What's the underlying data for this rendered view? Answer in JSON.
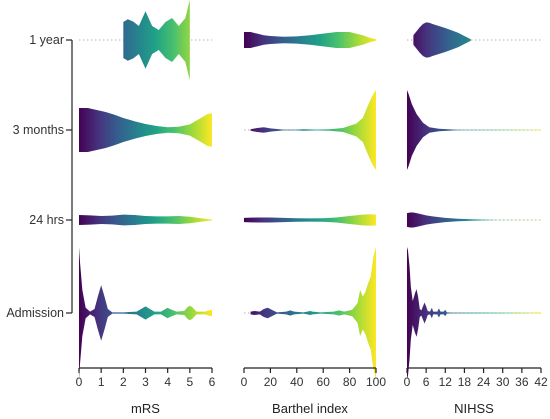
{
  "chart_data": {
    "type": "violin",
    "rows": [
      "1 year",
      "3 months",
      "24 hrs",
      "Admission"
    ],
    "colormap": [
      "#440154",
      "#46327e",
      "#365c8d",
      "#277f8e",
      "#1fa187",
      "#4ac16d",
      "#a0da39",
      "#fde725"
    ],
    "grid": "dotted horizontal baselines",
    "panels": [
      {
        "name": "mRS",
        "xlim": [
          0,
          6
        ],
        "ticks": [
          0,
          1,
          2,
          3,
          4,
          5,
          6
        ],
        "tick_labels": [
          "0",
          "1",
          "2",
          "3",
          "4",
          "5",
          "6"
        ],
        "violins": [
          {
            "row": "1 year",
            "range": [
              2,
              5
            ],
            "profile": [
              [
                2.0,
                0.45
              ],
              [
                2.2,
                0.52
              ],
              [
                2.45,
                0.46
              ],
              [
                2.7,
                0.35
              ],
              [
                3.0,
                0.72
              ],
              [
                3.3,
                0.35
              ],
              [
                3.6,
                0.25
              ],
              [
                3.9,
                0.45
              ],
              [
                4.2,
                0.55
              ],
              [
                4.5,
                0.35
              ],
              [
                4.8,
                0.55
              ],
              [
                4.95,
                0.9
              ],
              [
                5.0,
                1.0
              ]
            ]
          },
          {
            "row": "3 months",
            "range": [
              0,
              6
            ],
            "profile": [
              [
                0.0,
                0.55
              ],
              [
                0.4,
                0.55
              ],
              [
                0.8,
                0.5
              ],
              [
                1.2,
                0.45
              ],
              [
                1.6,
                0.38
              ],
              [
                2.0,
                0.3
              ],
              [
                2.5,
                0.22
              ],
              [
                3.0,
                0.15
              ],
              [
                3.5,
                0.1
              ],
              [
                4.0,
                0.07
              ],
              [
                4.5,
                0.08
              ],
              [
                5.0,
                0.14
              ],
              [
                5.5,
                0.3
              ],
              [
                5.8,
                0.4
              ],
              [
                6.0,
                0.42
              ]
            ]
          },
          {
            "row": "24 hrs",
            "range": [
              0,
              6
            ],
            "profile": [
              [
                0.0,
                0.28
              ],
              [
                0.5,
                0.26
              ],
              [
                1.0,
                0.22
              ],
              [
                1.5,
                0.24
              ],
              [
                2.0,
                0.3
              ],
              [
                2.5,
                0.28
              ],
              [
                3.0,
                0.22
              ],
              [
                3.5,
                0.2
              ],
              [
                4.0,
                0.2
              ],
              [
                4.5,
                0.22
              ],
              [
                5.0,
                0.18
              ],
              [
                5.5,
                0.1
              ],
              [
                6.0,
                0.02
              ]
            ]
          },
          {
            "row": "Admission",
            "range": [
              0,
              6
            ],
            "profile": [
              [
                0.0,
                1.0
              ],
              [
                0.05,
                0.75
              ],
              [
                0.15,
                0.35
              ],
              [
                0.3,
                0.08
              ],
              [
                0.5,
                0.02
              ],
              [
                0.7,
                0.06
              ],
              [
                0.85,
                0.25
              ],
              [
                1.0,
                0.42
              ],
              [
                1.15,
                0.25
              ],
              [
                1.3,
                0.06
              ],
              [
                1.5,
                0.01
              ],
              [
                2.0,
                0.01
              ],
              [
                2.6,
                0.02
              ],
              [
                2.85,
                0.07
              ],
              [
                3.0,
                0.1
              ],
              [
                3.15,
                0.07
              ],
              [
                3.4,
                0.02
              ],
              [
                3.7,
                0.02
              ],
              [
                3.9,
                0.06
              ],
              [
                4.0,
                0.08
              ],
              [
                4.1,
                0.06
              ],
              [
                4.4,
                0.02
              ],
              [
                4.75,
                0.03
              ],
              [
                4.9,
                0.09
              ],
              [
                5.0,
                0.11
              ],
              [
                5.1,
                0.09
              ],
              [
                5.3,
                0.02
              ],
              [
                5.7,
                0.02
              ],
              [
                5.85,
                0.04
              ],
              [
                6.0,
                0.05
              ]
            ]
          }
        ]
      },
      {
        "name": "Barthel index",
        "xlim": [
          0,
          100
        ],
        "ticks": [
          0,
          20,
          40,
          60,
          80,
          100
        ],
        "tick_labels": [
          "0",
          "20",
          "40",
          "60",
          "80",
          "100"
        ],
        "violins": [
          {
            "row": "1 year",
            "range": [
              0,
              100
            ],
            "profile": [
              [
                0,
                0.2
              ],
              [
                5,
                0.2
              ],
              [
                10,
                0.16
              ],
              [
                15,
                0.12
              ],
              [
                20,
                0.1
              ],
              [
                30,
                0.08
              ],
              [
                40,
                0.09
              ],
              [
                50,
                0.12
              ],
              [
                60,
                0.16
              ],
              [
                70,
                0.2
              ],
              [
                80,
                0.2
              ],
              [
                90,
                0.12
              ],
              [
                95,
                0.06
              ],
              [
                100,
                0.02
              ]
            ]
          },
          {
            "row": "3 months",
            "range": [
              5,
              100
            ],
            "profile": [
              [
                5,
                0.02
              ],
              [
                10,
                0.05
              ],
              [
                15,
                0.07
              ],
              [
                20,
                0.04
              ],
              [
                30,
                0.01
              ],
              [
                40,
                0.01
              ],
              [
                45,
                0.02
              ],
              [
                55,
                0.01
              ],
              [
                65,
                0.02
              ],
              [
                75,
                0.05
              ],
              [
                85,
                0.16
              ],
              [
                90,
                0.3
              ],
              [
                95,
                0.7
              ],
              [
                98,
                0.9
              ],
              [
                100,
                1.0
              ]
            ]
          },
          {
            "row": "24 hrs",
            "range": [
              0,
              100
            ],
            "profile": [
              [
                0,
                0.12
              ],
              [
                10,
                0.14
              ],
              [
                20,
                0.14
              ],
              [
                30,
                0.12
              ],
              [
                40,
                0.1
              ],
              [
                50,
                0.09
              ],
              [
                60,
                0.1
              ],
              [
                70,
                0.14
              ],
              [
                80,
                0.22
              ],
              [
                90,
                0.3
              ],
              [
                95,
                0.32
              ],
              [
                100,
                0.3
              ]
            ]
          },
          {
            "row": "Admission",
            "range": [
              5,
              100
            ],
            "profile": [
              [
                5,
                0.02
              ],
              [
                8,
                0.03
              ],
              [
                12,
                0.02
              ],
              [
                15,
                0.06
              ],
              [
                18,
                0.08
              ],
              [
                21,
                0.05
              ],
              [
                25,
                0.01
              ],
              [
                32,
                0.02
              ],
              [
                35,
                0.04
              ],
              [
                38,
                0.02
              ],
              [
                45,
                0.01
              ],
              [
                48,
                0.02
              ],
              [
                50,
                0.03
              ],
              [
                52,
                0.02
              ],
              [
                58,
                0.01
              ],
              [
                68,
                0.02
              ],
              [
                72,
                0.04
              ],
              [
                76,
                0.02
              ],
              [
                82,
                0.05
              ],
              [
                86,
                0.15
              ],
              [
                88,
                0.35
              ],
              [
                90,
                0.25
              ],
              [
                92,
                0.32
              ],
              [
                94,
                0.45
              ],
              [
                96,
                0.55
              ],
              [
                98,
                0.85
              ],
              [
                100,
                1.0
              ]
            ]
          }
        ]
      },
      {
        "name": "NIHSS",
        "xlim": [
          0,
          42
        ],
        "ticks": [
          0,
          6,
          12,
          18,
          24,
          30,
          36,
          42
        ],
        "tick_labels": [
          "0",
          "6",
          "12",
          "18",
          "24",
          "30",
          "36",
          "42"
        ],
        "violins": [
          {
            "row": "1 year",
            "range": [
              2,
              20
            ],
            "profile": [
              [
                2,
                0.12
              ],
              [
                3,
                0.22
              ],
              [
                4,
                0.32
              ],
              [
                5,
                0.4
              ],
              [
                6,
                0.44
              ],
              [
                7,
                0.43
              ],
              [
                8,
                0.4
              ],
              [
                10,
                0.35
              ],
              [
                12,
                0.3
              ],
              [
                14,
                0.24
              ],
              [
                16,
                0.18
              ],
              [
                18,
                0.1
              ],
              [
                20,
                0.02
              ]
            ]
          },
          {
            "row": "3 months",
            "range": [
              0,
              42
            ],
            "profile": [
              [
                0,
                1.0
              ],
              [
                0.5,
                0.9
              ],
              [
                1.5,
                0.65
              ],
              [
                3,
                0.4
              ],
              [
                5,
                0.18
              ],
              [
                7,
                0.07
              ],
              [
                10,
                0.03
              ],
              [
                13,
                0.02
              ],
              [
                15,
                0.01
              ],
              [
                18,
                0.005
              ],
              [
                40,
                0.005
              ],
              [
                42,
                0.01
              ]
            ]
          },
          {
            "row": "24 hrs",
            "range": [
              0,
              42
            ],
            "profile": [
              [
                0,
                0.38
              ],
              [
                1,
                0.42
              ],
              [
                2,
                0.42
              ],
              [
                3,
                0.38
              ],
              [
                4,
                0.34
              ],
              [
                6,
                0.26
              ],
              [
                8,
                0.2
              ],
              [
                10,
                0.16
              ],
              [
                12,
                0.12
              ],
              [
                16,
                0.07
              ],
              [
                20,
                0.04
              ],
              [
                24,
                0.02
              ],
              [
                28,
                0.005
              ],
              [
                42,
                0.01
              ]
            ]
          },
          {
            "row": "Admission",
            "range": [
              0,
              42
            ],
            "profile": [
              [
                0,
                1.0
              ],
              [
                0.3,
                0.95
              ],
              [
                0.8,
                0.7
              ],
              [
                1.2,
                0.4
              ],
              [
                1.8,
                0.18
              ],
              [
                2.5,
                0.3
              ],
              [
                3,
                0.36
              ],
              [
                3.5,
                0.24
              ],
              [
                4,
                0.06
              ],
              [
                4.5,
                0.04
              ],
              [
                5,
                0.1
              ],
              [
                5.5,
                0.16
              ],
              [
                6,
                0.1
              ],
              [
                6.5,
                0.03
              ],
              [
                7.2,
                0.02
              ],
              [
                7.8,
                0.08
              ],
              [
                8.2,
                0.02
              ],
              [
                9.5,
                0.02
              ],
              [
                10,
                0.07
              ],
              [
                10.5,
                0.02
              ],
              [
                11.5,
                0.02
              ],
              [
                12,
                0.05
              ],
              [
                12.5,
                0.01
              ],
              [
                14,
                0.005
              ],
              [
                40,
                0.005
              ],
              [
                42,
                0.01
              ]
            ]
          }
        ]
      }
    ]
  }
}
